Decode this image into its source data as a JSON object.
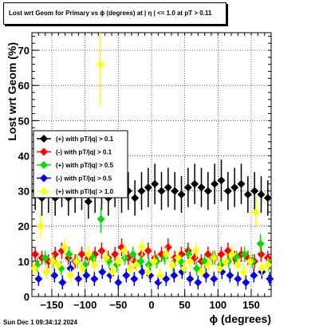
{
  "chart_data": {
    "type": "scatter",
    "title": "Lost wrt Geom for Primary vs ϕ (degrees) at |  η  | <= 1.0 at pT > 0.11",
    "xlabel": "ϕ (degrees)",
    "ylabel": "Lost wrt Geom (%)",
    "xlim": [
      -180,
      180
    ],
    "ylim": [
      0,
      75
    ],
    "x_ticks": [
      -150,
      -100,
      -50,
      0,
      50,
      100,
      150
    ],
    "x_tick_labels": [
      "−150",
      "−100",
      "−50",
      "0",
      "50",
      "100",
      "150"
    ],
    "y_ticks": [
      0,
      10,
      20,
      30,
      40,
      50,
      60,
      70
    ],
    "y_tick_labels": [
      "0",
      "10",
      "20",
      "30",
      "40",
      "50",
      "60",
      "70"
    ],
    "grid": true,
    "legend_position": "left-middle",
    "series": [
      {
        "name": "(+) with pT/|q| > 0.1",
        "color": "#000000",
        "marker": "diamond",
        "x": [
          -175,
          -165,
          -155,
          -145,
          -135,
          -125,
          -115,
          -105,
          -95,
          -85,
          -75,
          -65,
          -55,
          -45,
          -35,
          -25,
          -15,
          -5,
          5,
          15,
          25,
          35,
          45,
          55,
          65,
          75,
          85,
          95,
          105,
          115,
          125,
          135,
          145,
          155,
          165,
          175
        ],
        "y": [
          30,
          28,
          29,
          28,
          31,
          28,
          29,
          30,
          27,
          29,
          30,
          28,
          31,
          29,
          30,
          28,
          30,
          31,
          32,
          30,
          31,
          30,
          29,
          31,
          32,
          31,
          30,
          32,
          33,
          30,
          31,
          32,
          29,
          30,
          29,
          28
        ]
      },
      {
        "name": "(-) with pT/|q| > 0.1",
        "color": "#ff0000",
        "marker": "diamond",
        "x": [
          -175,
          -165,
          -155,
          -145,
          -135,
          -125,
          -115,
          -105,
          -95,
          -85,
          -75,
          -65,
          -55,
          -45,
          -35,
          -25,
          -15,
          -5,
          5,
          15,
          25,
          35,
          45,
          55,
          65,
          75,
          85,
          95,
          105,
          115,
          125,
          135,
          145,
          155,
          165,
          175
        ],
        "y": [
          12,
          11,
          10,
          12,
          13,
          11,
          10,
          12,
          11,
          12,
          13,
          11,
          12,
          14,
          11,
          10,
          12,
          13,
          11,
          12,
          14,
          11,
          12,
          13,
          11,
          10,
          12,
          11,
          12,
          13,
          11,
          12,
          11,
          10,
          12,
          11
        ]
      },
      {
        "name": "(+) with pT/|q| > 0.5",
        "color": "#00dd00",
        "marker": "diamond",
        "x": [
          -172,
          -160,
          -148,
          -136,
          -124,
          -112,
          -100,
          -88,
          -76,
          -64,
          -52,
          -40,
          -28,
          -16,
          -4,
          8,
          20,
          32,
          44,
          56,
          68,
          80,
          92,
          104,
          116,
          128,
          140,
          152,
          164,
          176
        ],
        "y": [
          9,
          11,
          10,
          8,
          12,
          10,
          9,
          11,
          22,
          10,
          9,
          11,
          12,
          10,
          9,
          10,
          11,
          9,
          10,
          12,
          8,
          10,
          11,
          9,
          10,
          11,
          12,
          10,
          15,
          9
        ]
      },
      {
        "name": "(-) with pT/|q| > 0.5",
        "color": "#0000ee",
        "marker": "diamond",
        "x": [
          -170,
          -158,
          -146,
          -134,
          -122,
          -110,
          -98,
          -86,
          -74,
          -62,
          -50,
          -38,
          -26,
          -14,
          -2,
          10,
          22,
          34,
          46,
          58,
          70,
          82,
          94,
          106,
          118,
          130,
          142,
          154,
          166,
          178
        ],
        "y": [
          5,
          7,
          6,
          4,
          8,
          5,
          6,
          5,
          7,
          6,
          4,
          6,
          5,
          7,
          6,
          4,
          5,
          6,
          7,
          5,
          4,
          6,
          5,
          7,
          6,
          5,
          4,
          6,
          7,
          5
        ]
      },
      {
        "name": "(+) with pT/|q| > 1.0",
        "color": "#ffff00",
        "marker": "diamond",
        "x": [
          -176,
          -167,
          -158,
          -149,
          -140,
          -131,
          -122,
          -113,
          -104,
          -95,
          -86,
          -77,
          -68,
          -59,
          -50,
          -41,
          -32,
          -23,
          -14,
          -5,
          4,
          13,
          22,
          31,
          40,
          49,
          58,
          67,
          76,
          85,
          94,
          103,
          112,
          121,
          130,
          139,
          148,
          157,
          166,
          175
        ],
        "y": [
          8,
          20,
          7,
          10,
          9,
          14,
          6,
          10,
          8,
          12,
          9,
          66,
          11,
          7,
          10,
          13,
          8,
          9,
          14,
          7,
          10,
          6,
          12,
          9,
          11,
          8,
          10,
          13,
          7,
          9,
          11,
          8,
          10,
          12,
          9,
          7,
          10,
          24,
          8,
          9
        ]
      }
    ]
  },
  "footer": {
    "timestamp": "Sun Dec  1 09:34:12 2024"
  }
}
